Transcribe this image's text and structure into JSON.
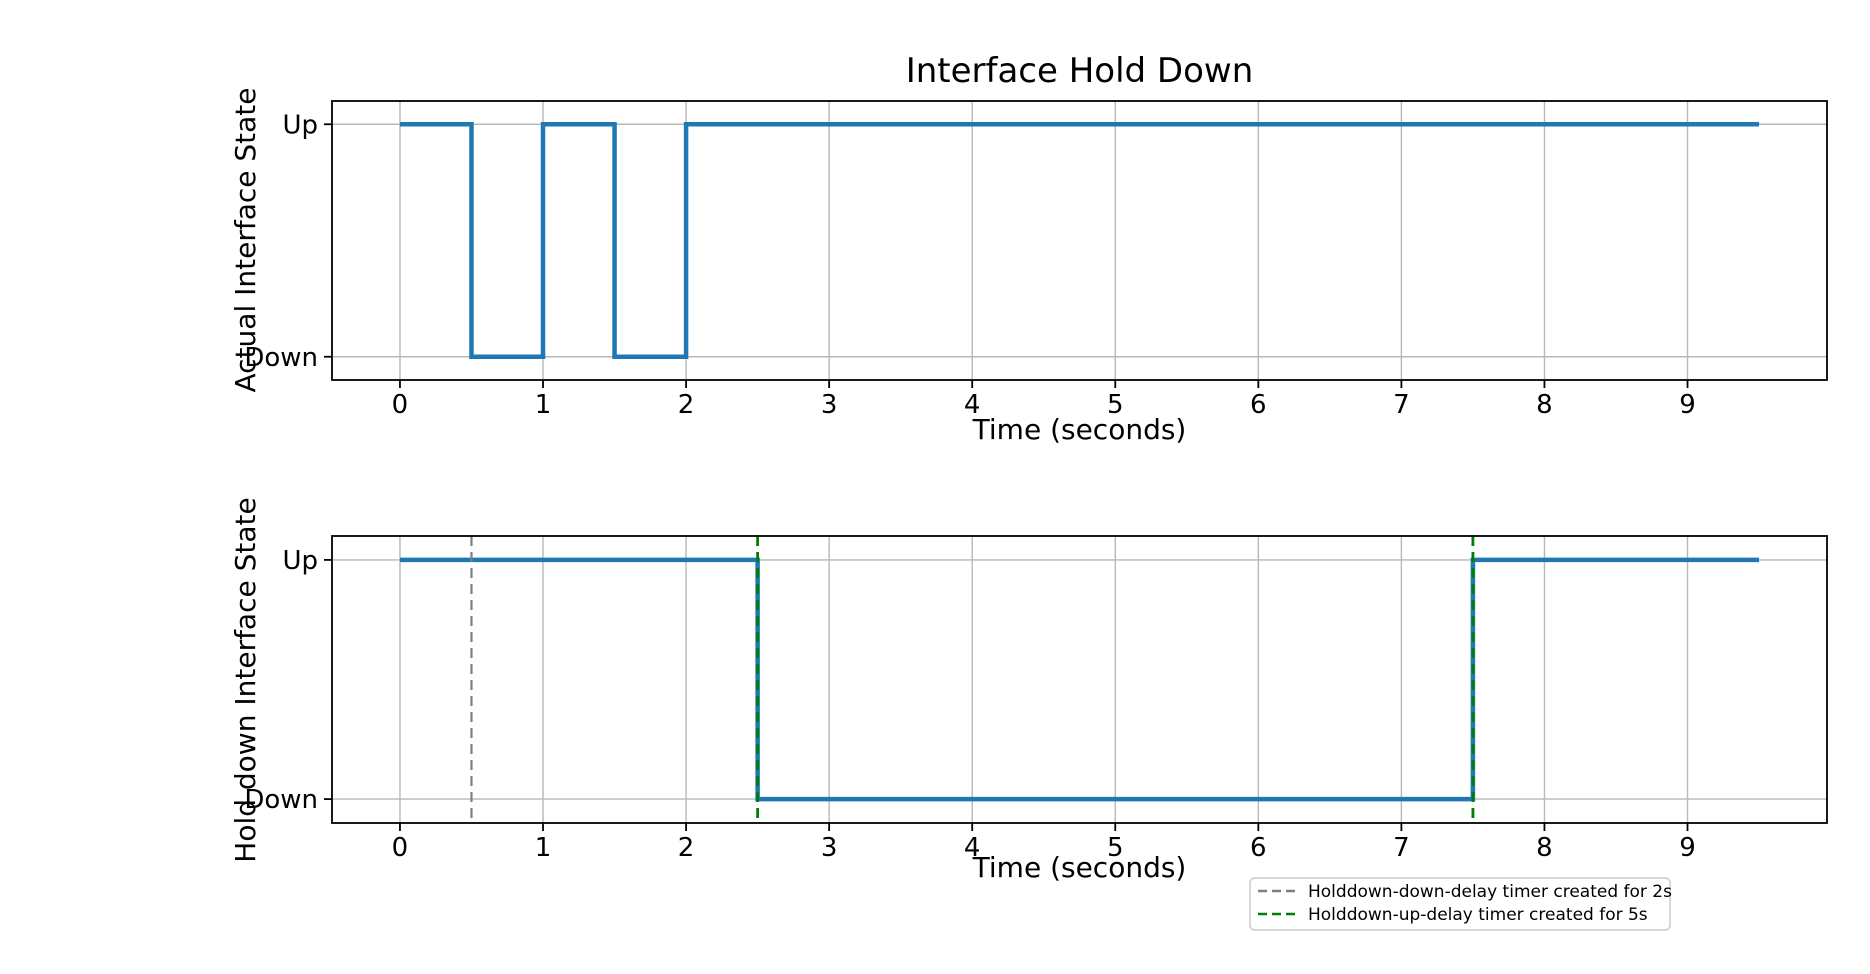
{
  "figure": {
    "background": "#ffffff",
    "palette": {
      "series_blue": "#1f77b4",
      "timer_gray": "#7f7f7f",
      "timer_green": "#008000",
      "grid": "#b8b8b8",
      "spine": "#000000",
      "legend_border": "#cccccc",
      "text": "#000000"
    }
  },
  "chart_data": [
    {
      "type": "line",
      "subplot": "top",
      "title": "Interface Hold Down",
      "xlabel": "Time (seconds)",
      "ylabel": "Actual Interface State",
      "x_ticks": [
        0,
        1,
        2,
        3,
        4,
        5,
        6,
        7,
        8,
        9
      ],
      "y_ticks": [
        {
          "value": 1,
          "label": "Up"
        },
        {
          "value": 0,
          "label": "Down"
        }
      ],
      "xlim": [
        -0.475,
        9.975
      ],
      "ylim": [
        -0.1,
        1.1
      ],
      "grid": true,
      "series": [
        {
          "name": "actual-interface-state",
          "color": "#1f77b4",
          "linewidth": 4.5,
          "linestyle": "solid",
          "x": [
            0,
            0.5,
            0.5,
            1,
            1,
            1.5,
            1.5,
            2,
            2,
            9.5
          ],
          "y": [
            1,
            1,
            0,
            0,
            1,
            1,
            0,
            0,
            1,
            1
          ]
        }
      ],
      "vlines": []
    },
    {
      "type": "line",
      "subplot": "bottom",
      "title": "",
      "xlabel": "Time (seconds)",
      "ylabel": "Hold down Interface State",
      "x_ticks": [
        0,
        1,
        2,
        3,
        4,
        5,
        6,
        7,
        8,
        9
      ],
      "y_ticks": [
        {
          "value": 1,
          "label": "Up"
        },
        {
          "value": 0,
          "label": "Down"
        }
      ],
      "xlim": [
        -0.475,
        9.975
      ],
      "ylim": [
        -0.1,
        1.1
      ],
      "grid": true,
      "series": [
        {
          "name": "holddown-interface-state",
          "color": "#1f77b4",
          "linewidth": 4.5,
          "linestyle": "solid",
          "x": [
            0,
            2.5,
            2.5,
            7.5,
            7.5,
            9.5
          ],
          "y": [
            1,
            1,
            0,
            0,
            1,
            1
          ]
        }
      ],
      "vlines": [
        {
          "name": "holddown-down-delay-timer-vline",
          "x": 0.5,
          "color": "#7f7f7f",
          "linestyle": "dashed",
          "linewidth": 2.2
        },
        {
          "name": "holddown-up-delay-timer-vline-start",
          "x": 2.5,
          "color": "#008000",
          "linestyle": "dashed",
          "linewidth": 2.8
        },
        {
          "name": "holddown-up-delay-timer-vline-end",
          "x": 7.5,
          "color": "#008000",
          "linestyle": "dashed",
          "linewidth": 2.8
        }
      ],
      "legend": {
        "position": "below-axes-right",
        "items": [
          {
            "label": "Holddown-down-delay timer created for 2s",
            "color": "#7f7f7f",
            "linestyle": "dashed"
          },
          {
            "label": "Holddown-up-delay timer created for 5s",
            "color": "#008000",
            "linestyle": "dashed"
          }
        ]
      }
    }
  ]
}
